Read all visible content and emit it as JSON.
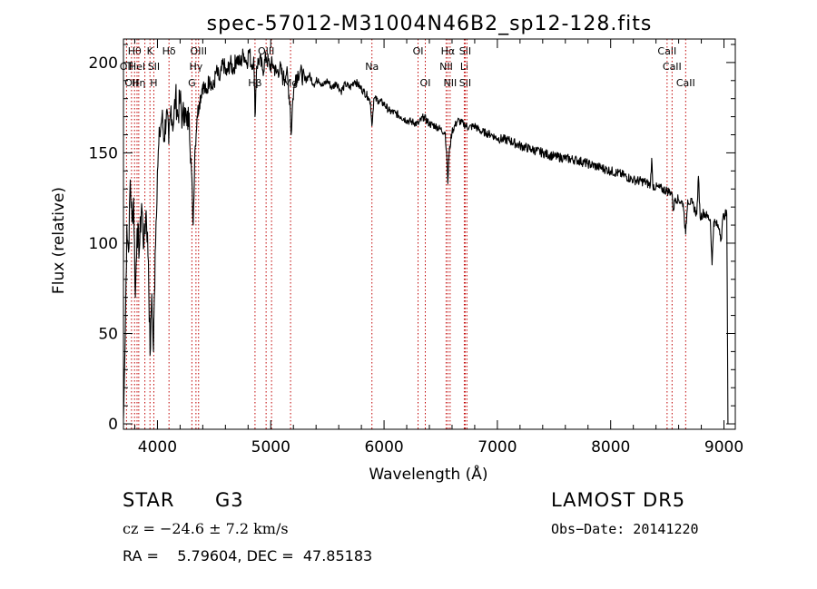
{
  "chart_data": {
    "type": "line",
    "title": "spec-57012-M31004N46B2_sp12-128.fits",
    "xlabel": "Wavelength (Å)",
    "ylabel": "Flux (relative)",
    "xlim": [
      3700,
      9100
    ],
    "ylim": [
      -3,
      213
    ],
    "xticks": [
      4000,
      5000,
      6000,
      7000,
      8000,
      9000
    ],
    "yticks": [
      0,
      50,
      100,
      150,
      200
    ],
    "grid": false,
    "line_color": "#000000",
    "marker_color": "#c00000",
    "series": [
      {
        "points": [
          [
            3700,
            3
          ],
          [
            3715,
            45
          ],
          [
            3730,
            110
          ],
          [
            3745,
            95
          ],
          [
            3760,
            135
          ],
          [
            3775,
            112
          ],
          [
            3790,
            125
          ],
          [
            3805,
            70
          ],
          [
            3820,
            108
          ],
          [
            3840,
            96
          ],
          [
            3860,
            122
          ],
          [
            3880,
            98
          ],
          [
            3900,
            118
          ],
          [
            3920,
            90
          ],
          [
            3935,
            38
          ],
          [
            3950,
            72
          ],
          [
            3965,
            40
          ],
          [
            3980,
            95
          ],
          [
            4000,
            140
          ],
          [
            4020,
            160
          ],
          [
            4040,
            170
          ],
          [
            4060,
            158
          ],
          [
            4080,
            173
          ],
          [
            4100,
            155
          ],
          [
            4120,
            176
          ],
          [
            4140,
            165
          ],
          [
            4160,
            182
          ],
          [
            4180,
            170
          ],
          [
            4200,
            180
          ],
          [
            4220,
            168
          ],
          [
            4240,
            175
          ],
          [
            4260,
            165
          ],
          [
            4280,
            172
          ],
          [
            4300,
            140
          ],
          [
            4315,
            110
          ],
          [
            4330,
            150
          ],
          [
            4350,
            170
          ],
          [
            4370,
            178
          ],
          [
            4400,
            188
          ],
          [
            4430,
            183
          ],
          [
            4460,
            192
          ],
          [
            4490,
            185
          ],
          [
            4520,
            195
          ],
          [
            4550,
            190
          ],
          [
            4580,
            200
          ],
          [
            4610,
            193
          ],
          [
            4640,
            200
          ],
          [
            4670,
            196
          ],
          [
            4700,
            203
          ],
          [
            4730,
            199
          ],
          [
            4760,
            205
          ],
          [
            4790,
            200
          ],
          [
            4810,
            207
          ],
          [
            4830,
            198
          ],
          [
            4850,
            203
          ],
          [
            4861,
            170
          ],
          [
            4875,
            198
          ],
          [
            4900,
            202
          ],
          [
            4930,
            196
          ],
          [
            4960,
            203
          ],
          [
            4990,
            198
          ],
          [
            5020,
            199
          ],
          [
            5050,
            194
          ],
          [
            5080,
            197
          ],
          [
            5110,
            191
          ],
          [
            5140,
            195
          ],
          [
            5170,
            178
          ],
          [
            5180,
            160
          ],
          [
            5195,
            180
          ],
          [
            5220,
            193
          ],
          [
            5260,
            195
          ],
          [
            5300,
            190
          ],
          [
            5340,
            193
          ],
          [
            5380,
            188
          ],
          [
            5420,
            191
          ],
          [
            5460,
            187
          ],
          [
            5500,
            190
          ],
          [
            5540,
            186
          ],
          [
            5580,
            189
          ],
          [
            5620,
            184
          ],
          [
            5660,
            188
          ],
          [
            5700,
            186
          ],
          [
            5740,
            190
          ],
          [
            5780,
            187
          ],
          [
            5820,
            184
          ],
          [
            5860,
            181
          ],
          [
            5880,
            178
          ],
          [
            5893,
            165
          ],
          [
            5910,
            180
          ],
          [
            5950,
            179
          ],
          [
            6000,
            177
          ],
          [
            6050,
            173
          ],
          [
            6100,
            172
          ],
          [
            6150,
            170
          ],
          [
            6200,
            168
          ],
          [
            6250,
            167
          ],
          [
            6300,
            166
          ],
          [
            6350,
            170
          ],
          [
            6400,
            166
          ],
          [
            6450,
            165
          ],
          [
            6500,
            163
          ],
          [
            6540,
            161
          ],
          [
            6556,
            145
          ],
          [
            6563,
            133
          ],
          [
            6575,
            150
          ],
          [
            6600,
            162
          ],
          [
            6650,
            168
          ],
          [
            6700,
            166
          ],
          [
            6750,
            164
          ],
          [
            6800,
            165
          ],
          [
            6850,
            162
          ],
          [
            6900,
            161
          ],
          [
            6950,
            160
          ],
          [
            7000,
            158
          ],
          [
            7100,
            157
          ],
          [
            7200,
            154
          ],
          [
            7300,
            152
          ],
          [
            7400,
            150
          ],
          [
            7500,
            148
          ],
          [
            7600,
            147
          ],
          [
            7700,
            146
          ],
          [
            7800,
            144
          ],
          [
            7900,
            142
          ],
          [
            8000,
            140
          ],
          [
            8100,
            138
          ],
          [
            8200,
            135
          ],
          [
            8300,
            134
          ],
          [
            8350,
            132
          ],
          [
            8362,
            147
          ],
          [
            8372,
            132
          ],
          [
            8400,
            131
          ],
          [
            8450,
            130
          ],
          [
            8500,
            129
          ],
          [
            8540,
            128
          ],
          [
            8552,
            118
          ],
          [
            8570,
            125
          ],
          [
            8600,
            124
          ],
          [
            8640,
            122
          ],
          [
            8662,
            105
          ],
          [
            8680,
            124
          ],
          [
            8720,
            122
          ],
          [
            8760,
            116
          ],
          [
            8775,
            137
          ],
          [
            8790,
            114
          ],
          [
            8820,
            117
          ],
          [
            8850,
            115
          ],
          [
            8880,
            113
          ],
          [
            8895,
            88
          ],
          [
            8910,
            112
          ],
          [
            8940,
            110
          ],
          [
            8960,
            108
          ],
          [
            8975,
            102
          ],
          [
            8990,
            114
          ],
          [
            9010,
            116
          ],
          [
            9025,
            116
          ],
          [
            9035,
            0
          ]
        ]
      }
    ],
    "line_markers": [
      {
        "wavelength": 3727,
        "labels": [
          "",
          "OII",
          ""
        ]
      },
      {
        "wavelength": 3771,
        "labels": [
          "",
          "",
          "OII"
        ]
      },
      {
        "wavelength": 3798,
        "labels": [
          "Hθ",
          "",
          ""
        ]
      },
      {
        "wavelength": 3820,
        "labels": [
          "",
          "HeI",
          ""
        ]
      },
      {
        "wavelength": 3835,
        "labels": [
          "",
          "",
          "Hη"
        ]
      },
      {
        "wavelength": 3889,
        "labels": [
          "",
          "",
          ""
        ]
      },
      {
        "wavelength": 3934,
        "labels": [
          "K",
          "",
          ""
        ]
      },
      {
        "wavelength": 3968,
        "labels": [
          "",
          "SII",
          "H"
        ]
      },
      {
        "wavelength": 4102,
        "labels": [
          "Hδ",
          "",
          ""
        ]
      },
      {
        "wavelength": 4304,
        "labels": [
          "",
          "",
          "G"
        ]
      },
      {
        "wavelength": 4340,
        "labels": [
          "",
          "Hγ",
          ""
        ]
      },
      {
        "wavelength": 4363,
        "labels": [
          "OIII",
          "",
          ""
        ]
      },
      {
        "wavelength": 4861,
        "labels": [
          "",
          "",
          "Hβ"
        ]
      },
      {
        "wavelength": 4959,
        "labels": [
          "OIII",
          "",
          ""
        ]
      },
      {
        "wavelength": 5007,
        "labels": [
          "",
          "",
          ""
        ]
      },
      {
        "wavelength": 5175,
        "labels": [
          "",
          "",
          "Mg"
        ]
      },
      {
        "wavelength": 5893,
        "labels": [
          "",
          "Na",
          ""
        ]
      },
      {
        "wavelength": 6300,
        "labels": [
          "OI",
          "",
          ""
        ]
      },
      {
        "wavelength": 6364,
        "labels": [
          "",
          "",
          "OI"
        ]
      },
      {
        "wavelength": 6548,
        "labels": [
          "",
          "NII",
          ""
        ]
      },
      {
        "wavelength": 6563,
        "labels": [
          "Hα",
          "",
          ""
        ]
      },
      {
        "wavelength": 6583,
        "labels": [
          "",
          "",
          "NII"
        ]
      },
      {
        "wavelength": 6708,
        "labels": [
          "",
          "Li",
          ""
        ]
      },
      {
        "wavelength": 6716,
        "labels": [
          "SII",
          "",
          "SII"
        ]
      },
      {
        "wavelength": 6731,
        "labels": [
          "",
          "",
          ""
        ]
      },
      {
        "wavelength": 8498,
        "labels": [
          "CaII",
          "",
          ""
        ]
      },
      {
        "wavelength": 8542,
        "labels": [
          "",
          "CaII",
          ""
        ]
      },
      {
        "wavelength": 8662,
        "labels": [
          "",
          "",
          "CaII"
        ]
      }
    ]
  },
  "info": {
    "class": "STAR",
    "subclass": "G3",
    "survey": "LAMOST DR5",
    "redshift": "cz = −24.6 ± 7.2 km/s",
    "obs_date": "Obs−Date: 20141220",
    "coords": "RA =    5.79604, DEC =  47.85183"
  }
}
